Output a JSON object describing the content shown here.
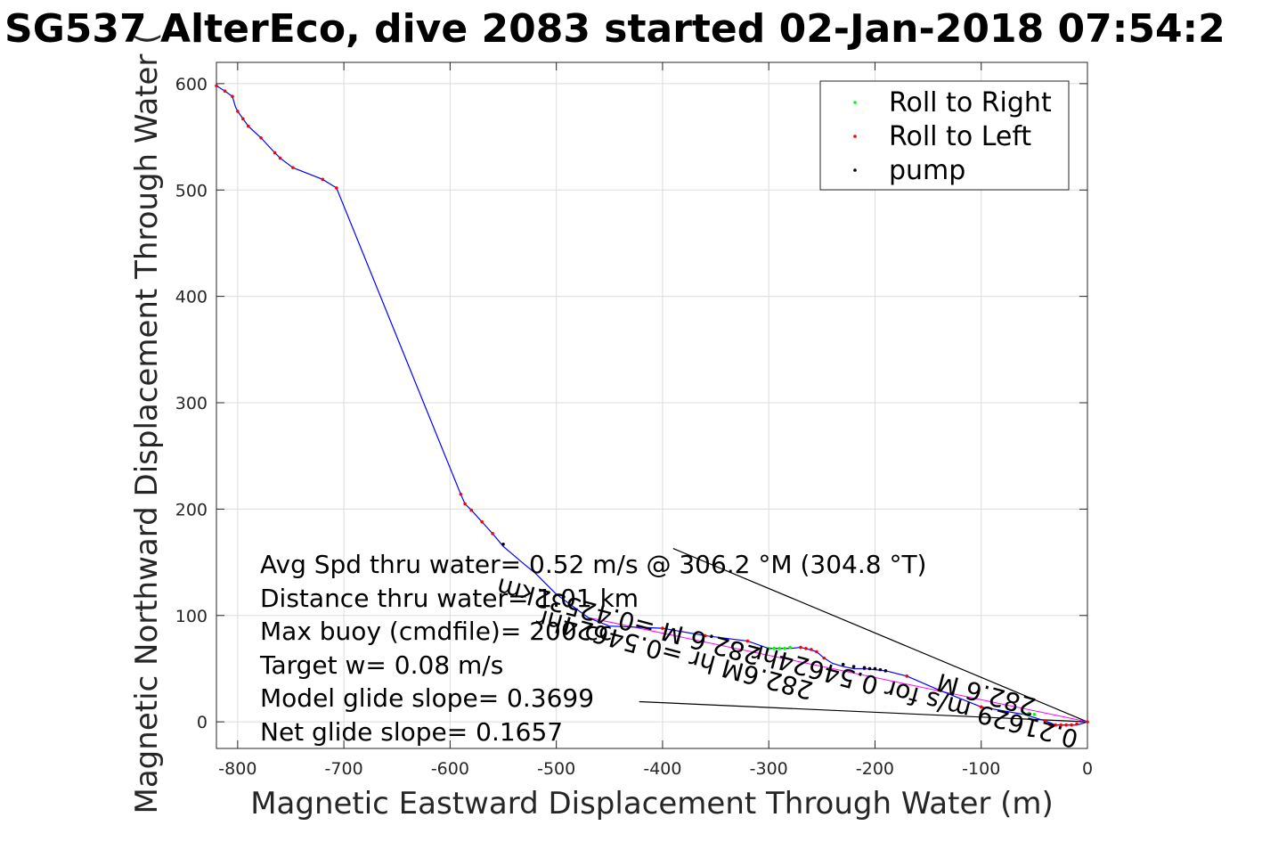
{
  "chart_data": {
    "type": "line",
    "title": "SG537 AlterEco, dive 2083 started 02-Jan-2018 07:54:2",
    "xlabel": "Magnetic Eastward Displacement Through Water (m)",
    "ylabel": "Magnetic Northward Displacement Through Water (",
    "xlim": [
      -820,
      0
    ],
    "ylim": [
      -25,
      620
    ],
    "xticks": [
      -800,
      -700,
      -600,
      -500,
      -400,
      -300,
      -200,
      -100,
      0
    ],
    "yticks": [
      0,
      100,
      200,
      300,
      400,
      500,
      600
    ],
    "grid": true,
    "legend": {
      "placement": "top-right",
      "entries": [
        {
          "label": "Roll to Right",
          "color": "#00ff00"
        },
        {
          "label": "Roll to Left",
          "color": "#ff0000"
        },
        {
          "label": "pump",
          "color": "#000000"
        }
      ]
    },
    "colors": {
      "track": "#0000ff",
      "pitch": "#ff00ff",
      "roll_right": "#00ff00",
      "roll_left": "#ff0000",
      "pump": "#000000"
    },
    "track": {
      "x": [
        -820,
        -812,
        -805,
        -802,
        -800,
        -795,
        -790,
        -778,
        -765,
        -760,
        -748,
        -720,
        -707,
        -590,
        -586,
        -580,
        -570,
        -560,
        -550,
        -530,
        -520,
        -500,
        -470,
        -450,
        -400,
        -360,
        -320,
        -300,
        -290,
        -280,
        -270,
        -262,
        -255,
        -248,
        -240,
        -230,
        -220,
        -210,
        -200,
        -190,
        -170,
        -140,
        -100,
        -60,
        -40,
        -30,
        -20,
        -10,
        0
      ],
      "y": [
        598,
        593,
        588,
        578,
        574,
        567,
        560,
        549,
        535,
        530,
        521,
        510,
        502,
        214,
        205,
        199,
        188,
        177,
        165,
        148,
        140,
        120,
        98,
        90,
        88,
        81,
        76,
        69,
        69,
        69,
        70,
        68,
        66,
        60,
        55,
        52,
        50,
        50,
        49,
        48,
        43,
        30,
        14,
        7,
        1,
        -3,
        -3,
        -3,
        0
      ]
    },
    "roll_right": {
      "x": [
        -300,
        -295,
        -290,
        -285,
        -280,
        -60,
        -55,
        -50
      ],
      "y": [
        69,
        69,
        69,
        69,
        70,
        8,
        8,
        7
      ]
    },
    "roll_left": {
      "x": [
        -820,
        -812,
        -805,
        -800,
        -795,
        -790,
        -778,
        -765,
        -760,
        -748,
        -720,
        -707,
        -590,
        -586,
        -580,
        -570,
        -560,
        -400,
        -360,
        -320,
        -270,
        -265,
        -260,
        -255,
        -248,
        -210,
        -170,
        -140,
        -100,
        -40,
        -35,
        -30,
        -25,
        -20,
        -15,
        -10,
        0
      ],
      "y": [
        598,
        593,
        588,
        574,
        567,
        560,
        549,
        535,
        530,
        521,
        510,
        502,
        214,
        205,
        199,
        188,
        177,
        88,
        81,
        76,
        70,
        69,
        68,
        66,
        60,
        50,
        43,
        30,
        14,
        1,
        -3,
        -3,
        -3,
        -3,
        -3,
        -2,
        0
      ]
    },
    "pump": {
      "x": [
        -550,
        -230,
        -220,
        -210,
        -205,
        -200,
        -195,
        -190
      ],
      "y": [
        167,
        54,
        52,
        51,
        50,
        50,
        49,
        48
      ]
    },
    "annotations": [
      "Avg Spd thru water=  0.52 m/s @ 306.2 °M (304.8 °T)",
      "Distance thru water=  1.01 km",
      "Max buoy (cmdfile)= 200 cc",
      "Target w= 0.08 m/s",
      "Model glide slope= 0.3699",
      "Net glide slope= 0.1657"
    ],
    "rotated_annotations": [
      "282.6 M =0.42532km",
      "282.6M hr =0.54624hr",
      "0.21629 m/s for 0.54624hr",
      "282.6 M"
    ]
  }
}
